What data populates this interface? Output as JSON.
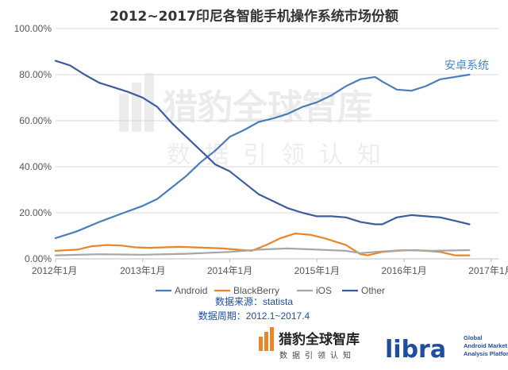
{
  "chart_data": {
    "type": "line",
    "title": "2012~2017印尼各智能手机操作系统市场份额",
    "y_ticks": [
      "100.00%",
      "80.00%",
      "60.00%",
      "40.00%",
      "20.00%",
      "0.00%"
    ],
    "x_ticks": [
      "2012年1月",
      "2013年1月",
      "2014年1月",
      "2015年1月",
      "2016年1月",
      "2017年1月"
    ],
    "ylim": [
      0,
      100
    ],
    "x_range_months": [
      0,
      61
    ],
    "grid": true,
    "legend_position": "bottom",
    "annotation": "安卓系统",
    "series": [
      {
        "name": "Android",
        "color": "#4a7ebb",
        "points": [
          [
            0,
            9
          ],
          [
            3,
            12
          ],
          [
            6,
            16
          ],
          [
            9,
            19.5
          ],
          [
            12,
            23
          ],
          [
            14,
            26
          ],
          [
            16,
            31
          ],
          [
            18,
            36
          ],
          [
            20,
            42
          ],
          [
            22,
            47
          ],
          [
            24,
            53
          ],
          [
            26,
            56
          ],
          [
            28,
            59.5
          ],
          [
            30,
            61
          ],
          [
            32,
            63
          ],
          [
            34,
            66
          ],
          [
            36,
            68
          ],
          [
            38,
            71
          ],
          [
            40,
            75
          ],
          [
            42,
            78
          ],
          [
            44,
            79
          ],
          [
            45,
            77
          ],
          [
            47,
            73.5
          ],
          [
            49,
            73
          ],
          [
            51,
            75
          ],
          [
            53,
            78
          ],
          [
            55,
            79
          ],
          [
            57,
            80
          ]
        ]
      },
      {
        "name": "BlackBerry",
        "color": "#e8862a",
        "points": [
          [
            0,
            3.5
          ],
          [
            3,
            4
          ],
          [
            5,
            5.5
          ],
          [
            7,
            6
          ],
          [
            9,
            5.8
          ],
          [
            11,
            5
          ],
          [
            13,
            4.8
          ],
          [
            15,
            5
          ],
          [
            17,
            5.2
          ],
          [
            19,
            5
          ],
          [
            21,
            4.8
          ],
          [
            23,
            4.5
          ],
          [
            25,
            4
          ],
          [
            27,
            3.5
          ],
          [
            29,
            6
          ],
          [
            31,
            9
          ],
          [
            33,
            11
          ],
          [
            35,
            10.5
          ],
          [
            37,
            9
          ],
          [
            39,
            7
          ],
          [
            40,
            6
          ],
          [
            41,
            4
          ],
          [
            42,
            2
          ],
          [
            43,
            1.5
          ],
          [
            45,
            3
          ],
          [
            47,
            3.5
          ],
          [
            49,
            3.8
          ],
          [
            51,
            3.5
          ],
          [
            53,
            3
          ],
          [
            55,
            1.5
          ],
          [
            57,
            1.5
          ]
        ]
      },
      {
        "name": "iOS",
        "color": "#a6a6a6",
        "points": [
          [
            0,
            1.5
          ],
          [
            6,
            2
          ],
          [
            12,
            1.8
          ],
          [
            18,
            2.2
          ],
          [
            24,
            3
          ],
          [
            28,
            4
          ],
          [
            32,
            4.5
          ],
          [
            36,
            4
          ],
          [
            40,
            3.5
          ],
          [
            42,
            2.5
          ],
          [
            44,
            3
          ],
          [
            48,
            3.8
          ],
          [
            52,
            3.5
          ],
          [
            57,
            3.8
          ]
        ]
      },
      {
        "name": "Other",
        "color": "#3b5d9b",
        "points": [
          [
            0,
            86
          ],
          [
            2,
            84
          ],
          [
            4,
            80
          ],
          [
            6,
            76.5
          ],
          [
            8,
            74.5
          ],
          [
            10,
            72.5
          ],
          [
            12,
            70
          ],
          [
            14,
            66
          ],
          [
            16,
            59
          ],
          [
            18,
            53
          ],
          [
            20,
            47
          ],
          [
            22,
            41
          ],
          [
            24,
            38
          ],
          [
            26,
            33
          ],
          [
            28,
            28
          ],
          [
            30,
            25
          ],
          [
            32,
            22
          ],
          [
            34,
            20
          ],
          [
            36,
            18.5
          ],
          [
            38,
            18.5
          ],
          [
            40,
            18
          ],
          [
            42,
            16
          ],
          [
            44,
            15
          ],
          [
            45,
            15
          ],
          [
            47,
            18
          ],
          [
            49,
            19
          ],
          [
            51,
            18.5
          ],
          [
            53,
            18
          ],
          [
            55,
            16.5
          ],
          [
            57,
            15
          ]
        ]
      }
    ]
  },
  "notes": {
    "source": "数据来源：statista",
    "period": "数据周期：2012.1~2017.4"
  },
  "watermark": {
    "brand": "猎豹全球智库",
    "slogan": "数据引领认知"
  },
  "footer": {
    "brand_cn": "猎豹全球智库",
    "brand_slogan": "数据引领认知",
    "libra": "libra",
    "libra_sub_1": "Global",
    "libra_sub_2": "Android Market",
    "libra_sub_3": "Analysis Platform"
  }
}
